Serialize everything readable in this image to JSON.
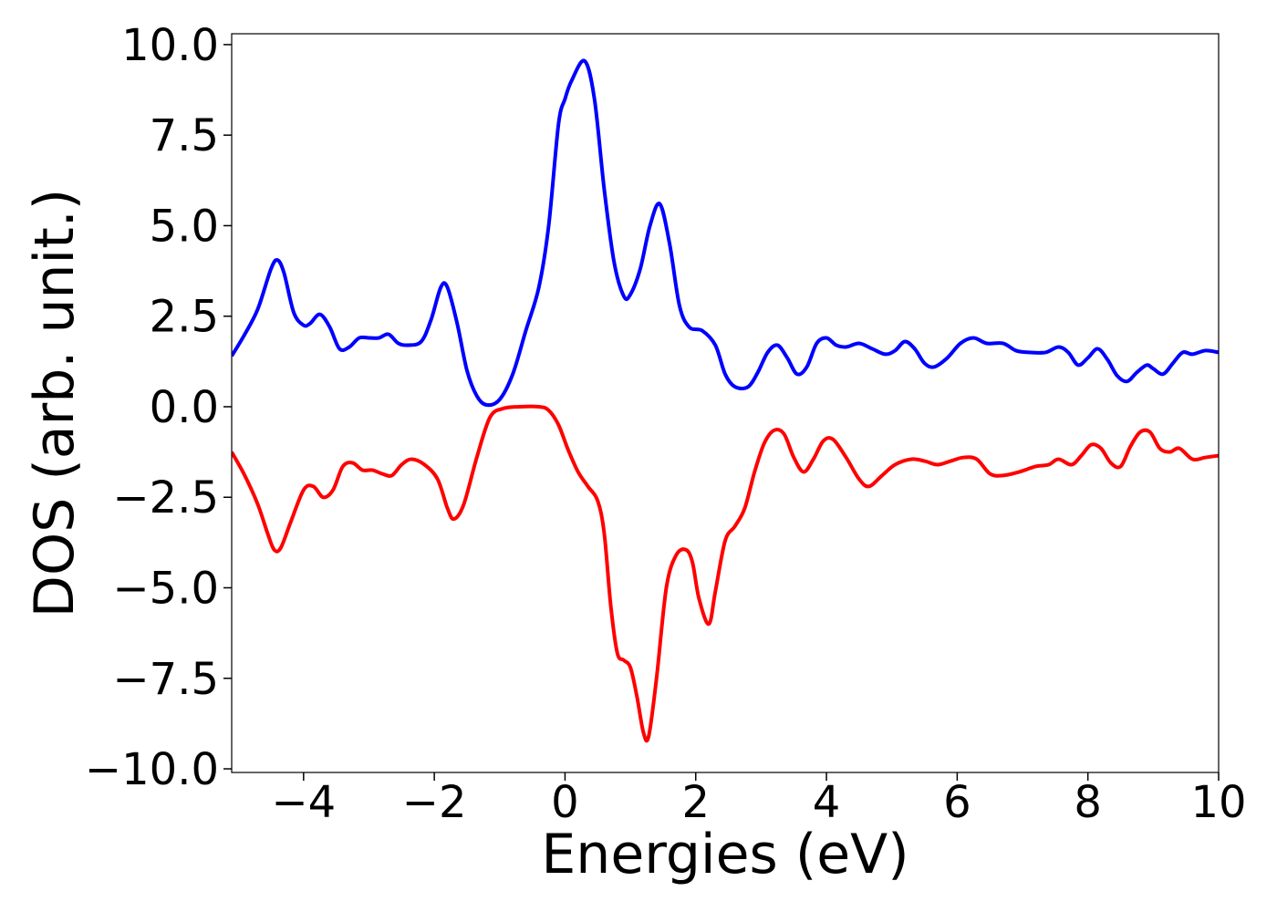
{
  "chart_data": {
    "type": "line",
    "title": "",
    "xlabel": "Energies (eV)",
    "ylabel": "DOS (arb. unit.)",
    "xlim": [
      -5.1,
      10
    ],
    "ylim": [
      -10.1,
      10.3
    ],
    "grid": false,
    "x_ticks": [
      {
        "value": -4,
        "label": "−4"
      },
      {
        "value": -2,
        "label": "−2"
      },
      {
        "value": 0,
        "label": "0"
      },
      {
        "value": 2,
        "label": "2"
      },
      {
        "value": 4,
        "label": "4"
      },
      {
        "value": 6,
        "label": "6"
      },
      {
        "value": 8,
        "label": "8"
      },
      {
        "value": 10,
        "label": "10"
      }
    ],
    "y_ticks": [
      {
        "value": 10,
        "label": "10.0"
      },
      {
        "value": 7.5,
        "label": "7.5"
      },
      {
        "value": 5,
        "label": "5.0"
      },
      {
        "value": 2.5,
        "label": "2.5"
      },
      {
        "value": 0,
        "label": "0.0"
      },
      {
        "value": -2.5,
        "label": "−2.5"
      },
      {
        "value": -5,
        "label": "−5.0"
      },
      {
        "value": -7.5,
        "label": "−7.5"
      },
      {
        "value": -10,
        "label": "−10.0"
      }
    ],
    "series": [
      {
        "color": "#0000ff",
        "points": [
          [
            -5.1,
            1.4
          ],
          [
            -4.9,
            2.0
          ],
          [
            -4.7,
            2.7
          ],
          [
            -4.5,
            3.8
          ],
          [
            -4.4,
            4.05
          ],
          [
            -4.3,
            3.7
          ],
          [
            -4.15,
            2.6
          ],
          [
            -4.0,
            2.25
          ],
          [
            -3.9,
            2.3
          ],
          [
            -3.75,
            2.55
          ],
          [
            -3.6,
            2.2
          ],
          [
            -3.45,
            1.6
          ],
          [
            -3.3,
            1.65
          ],
          [
            -3.15,
            1.9
          ],
          [
            -3.0,
            1.9
          ],
          [
            -2.85,
            1.9
          ],
          [
            -2.7,
            2.0
          ],
          [
            -2.55,
            1.75
          ],
          [
            -2.4,
            1.7
          ],
          [
            -2.2,
            1.8
          ],
          [
            -2.05,
            2.4
          ],
          [
            -1.9,
            3.3
          ],
          [
            -1.8,
            3.3
          ],
          [
            -1.65,
            2.3
          ],
          [
            -1.5,
            1.0
          ],
          [
            -1.35,
            0.3
          ],
          [
            -1.2,
            0.05
          ],
          [
            -1.0,
            0.2
          ],
          [
            -0.8,
            0.9
          ],
          [
            -0.6,
            2.1
          ],
          [
            -0.4,
            3.3
          ],
          [
            -0.25,
            5.0
          ],
          [
            -0.1,
            7.8
          ],
          [
            0.0,
            8.5
          ],
          [
            0.1,
            9.0
          ],
          [
            0.3,
            9.55
          ],
          [
            0.45,
            8.5
          ],
          [
            0.6,
            6.0
          ],
          [
            0.75,
            4.0
          ],
          [
            0.9,
            3.05
          ],
          [
            1.0,
            3.1
          ],
          [
            1.15,
            3.8
          ],
          [
            1.3,
            5.0
          ],
          [
            1.45,
            5.6
          ],
          [
            1.6,
            4.5
          ],
          [
            1.75,
            2.8
          ],
          [
            1.9,
            2.2
          ],
          [
            2.1,
            2.1
          ],
          [
            2.3,
            1.7
          ],
          [
            2.45,
            0.9
          ],
          [
            2.6,
            0.55
          ],
          [
            2.8,
            0.55
          ],
          [
            2.95,
            0.95
          ],
          [
            3.1,
            1.5
          ],
          [
            3.25,
            1.7
          ],
          [
            3.4,
            1.35
          ],
          [
            3.55,
            0.9
          ],
          [
            3.7,
            1.1
          ],
          [
            3.85,
            1.75
          ],
          [
            4.0,
            1.9
          ],
          [
            4.15,
            1.7
          ],
          [
            4.3,
            1.65
          ],
          [
            4.5,
            1.75
          ],
          [
            4.7,
            1.6
          ],
          [
            4.9,
            1.45
          ],
          [
            5.05,
            1.55
          ],
          [
            5.2,
            1.8
          ],
          [
            5.35,
            1.6
          ],
          [
            5.5,
            1.2
          ],
          [
            5.65,
            1.1
          ],
          [
            5.85,
            1.35
          ],
          [
            6.05,
            1.75
          ],
          [
            6.25,
            1.9
          ],
          [
            6.45,
            1.75
          ],
          [
            6.7,
            1.75
          ],
          [
            6.9,
            1.55
          ],
          [
            7.1,
            1.5
          ],
          [
            7.35,
            1.5
          ],
          [
            7.55,
            1.65
          ],
          [
            7.7,
            1.5
          ],
          [
            7.85,
            1.15
          ],
          [
            8.0,
            1.35
          ],
          [
            8.15,
            1.6
          ],
          [
            8.3,
            1.3
          ],
          [
            8.45,
            0.85
          ],
          [
            8.6,
            0.7
          ],
          [
            8.75,
            0.95
          ],
          [
            8.9,
            1.15
          ],
          [
            9.0,
            1.05
          ],
          [
            9.15,
            0.9
          ],
          [
            9.3,
            1.2
          ],
          [
            9.45,
            1.5
          ],
          [
            9.6,
            1.45
          ],
          [
            9.8,
            1.55
          ],
          [
            10.0,
            1.5
          ]
        ]
      },
      {
        "color": "#ff0000",
        "points": [
          [
            -5.1,
            -1.25
          ],
          [
            -4.9,
            -1.9
          ],
          [
            -4.7,
            -2.7
          ],
          [
            -4.55,
            -3.5
          ],
          [
            -4.45,
            -3.95
          ],
          [
            -4.35,
            -3.9
          ],
          [
            -4.2,
            -3.2
          ],
          [
            -4.0,
            -2.3
          ],
          [
            -3.85,
            -2.2
          ],
          [
            -3.7,
            -2.5
          ],
          [
            -3.55,
            -2.3
          ],
          [
            -3.4,
            -1.65
          ],
          [
            -3.25,
            -1.55
          ],
          [
            -3.1,
            -1.75
          ],
          [
            -2.95,
            -1.75
          ],
          [
            -2.8,
            -1.85
          ],
          [
            -2.65,
            -1.9
          ],
          [
            -2.5,
            -1.6
          ],
          [
            -2.35,
            -1.45
          ],
          [
            -2.15,
            -1.6
          ],
          [
            -1.95,
            -2.0
          ],
          [
            -1.8,
            -2.8
          ],
          [
            -1.7,
            -3.1
          ],
          [
            -1.55,
            -2.7
          ],
          [
            -1.35,
            -1.4
          ],
          [
            -1.15,
            -0.3
          ],
          [
            -0.95,
            -0.05
          ],
          [
            -0.7,
            0.0
          ],
          [
            -0.4,
            0.0
          ],
          [
            -0.25,
            -0.1
          ],
          [
            -0.1,
            -0.5
          ],
          [
            0.05,
            -1.2
          ],
          [
            0.2,
            -1.8
          ],
          [
            0.35,
            -2.2
          ],
          [
            0.5,
            -2.6
          ],
          [
            0.6,
            -3.5
          ],
          [
            0.7,
            -5.5
          ],
          [
            0.8,
            -6.8
          ],
          [
            0.9,
            -7.0
          ],
          [
            1.0,
            -7.2
          ],
          [
            1.1,
            -8.0
          ],
          [
            1.2,
            -9.0
          ],
          [
            1.28,
            -9.1
          ],
          [
            1.4,
            -7.5
          ],
          [
            1.55,
            -5.0
          ],
          [
            1.7,
            -4.1
          ],
          [
            1.85,
            -3.95
          ],
          [
            1.95,
            -4.3
          ],
          [
            2.05,
            -5.3
          ],
          [
            2.2,
            -6.0
          ],
          [
            2.3,
            -5.1
          ],
          [
            2.45,
            -3.7
          ],
          [
            2.6,
            -3.3
          ],
          [
            2.75,
            -2.8
          ],
          [
            2.9,
            -1.8
          ],
          [
            3.05,
            -1.0
          ],
          [
            3.2,
            -0.65
          ],
          [
            3.35,
            -0.75
          ],
          [
            3.5,
            -1.4
          ],
          [
            3.65,
            -1.8
          ],
          [
            3.8,
            -1.45
          ],
          [
            3.95,
            -0.95
          ],
          [
            4.1,
            -0.9
          ],
          [
            4.3,
            -1.4
          ],
          [
            4.5,
            -2.0
          ],
          [
            4.65,
            -2.2
          ],
          [
            4.85,
            -1.9
          ],
          [
            5.05,
            -1.6
          ],
          [
            5.3,
            -1.45
          ],
          [
            5.5,
            -1.5
          ],
          [
            5.7,
            -1.6
          ],
          [
            5.9,
            -1.5
          ],
          [
            6.1,
            -1.4
          ],
          [
            6.3,
            -1.45
          ],
          [
            6.5,
            -1.85
          ],
          [
            6.7,
            -1.9
          ],
          [
            6.95,
            -1.8
          ],
          [
            7.2,
            -1.65
          ],
          [
            7.4,
            -1.6
          ],
          [
            7.55,
            -1.45
          ],
          [
            7.75,
            -1.6
          ],
          [
            7.9,
            -1.35
          ],
          [
            8.05,
            -1.05
          ],
          [
            8.2,
            -1.15
          ],
          [
            8.35,
            -1.55
          ],
          [
            8.5,
            -1.65
          ],
          [
            8.65,
            -1.1
          ],
          [
            8.8,
            -0.7
          ],
          [
            8.95,
            -0.7
          ],
          [
            9.1,
            -1.15
          ],
          [
            9.25,
            -1.25
          ],
          [
            9.4,
            -1.15
          ],
          [
            9.6,
            -1.45
          ],
          [
            9.8,
            -1.4
          ],
          [
            10.0,
            -1.35
          ]
        ]
      }
    ]
  }
}
